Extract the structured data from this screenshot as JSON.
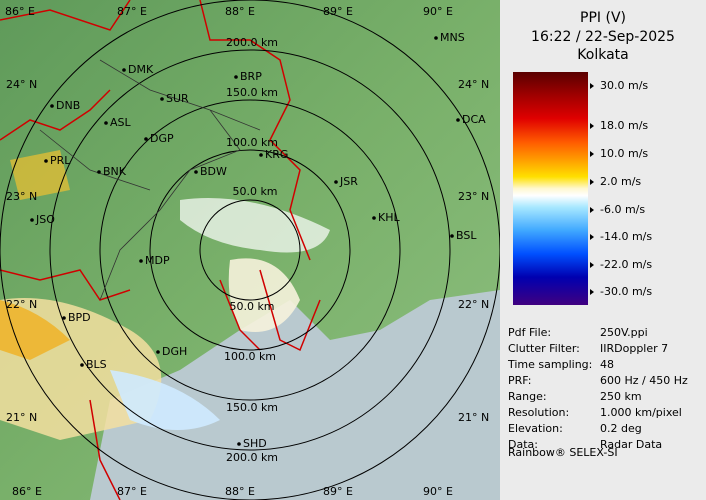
{
  "header": {
    "title": "PPI (V)",
    "time": "16:22 / 22-Sep-2025",
    "station": "Kolkata"
  },
  "legend": {
    "labels": [
      "30.0 m/s",
      "18.0 m/s",
      "10.0 m/s",
      "2.0 m/s",
      "-6.0 m/s",
      "-14.0 m/s",
      "-22.0 m/s",
      "-30.0 m/s"
    ]
  },
  "info": {
    "rows": [
      [
        "Pdf File:",
        "250V.ppi"
      ],
      [
        "Clutter Filter:",
        "IIRDoppler 7"
      ],
      [
        "Time sampling:",
        "48"
      ],
      [
        "PRF:",
        "600 Hz / 450 Hz"
      ],
      [
        "Range:",
        "250 km"
      ],
      [
        "Resolution:",
        "1.000 km/pixel"
      ],
      [
        "Elevation:",
        "0.2 deg"
      ],
      [
        "Data:",
        "Radar Data"
      ]
    ],
    "footer": "Rainbow® SELEX-SI"
  },
  "map": {
    "longitudes": [
      "86° E",
      "87° E",
      "88° E",
      "89° E",
      "90° E"
    ],
    "latitudes": [
      "24° N",
      "23° N",
      "22° N",
      "21° N"
    ],
    "range_labels_north": [
      "50.0 km",
      "100.0 km",
      "150.0 km",
      "200.0 km"
    ],
    "range_labels_south": [
      "50.0 km",
      "100.0 km",
      "150.0 km",
      "200.0 km"
    ],
    "cities": [
      "MNS",
      "DMK",
      "BRP",
      "DNB",
      "SUR",
      "ASL",
      "DGP",
      "DCA",
      "KRG",
      "PRL",
      "BNK",
      "BDW",
      "JSR",
      "KHL",
      "JSO",
      "BSL",
      "MDP",
      "BPD",
      "DGH",
      "BLS",
      "SHD"
    ]
  }
}
